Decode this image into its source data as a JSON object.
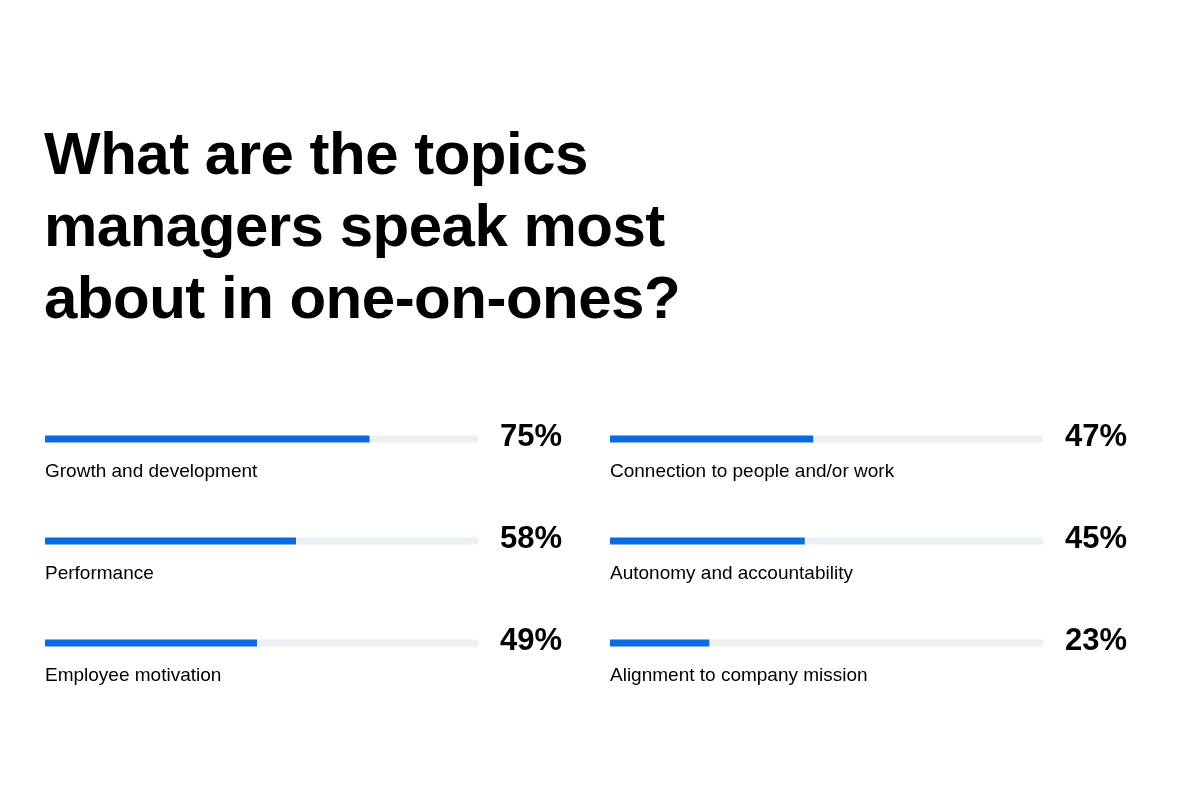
{
  "chart_data": [
    {
      "type": "bar",
      "title": "What are the topics managers speak most about in one-on-ones?",
      "orientation": "horizontal",
      "categories": [
        "Growth and development",
        "Performance",
        "Employee motivation"
      ],
      "values": [
        75,
        58,
        49
      ],
      "value_labels": [
        "75%",
        "58%",
        "49%"
      ],
      "color": "#0a6be0",
      "xlim": [
        0,
        100
      ]
    },
    {
      "type": "bar",
      "orientation": "horizontal",
      "categories": [
        "Connection to people and/or work",
        "Autonomy and accountability",
        "Alignment to company mission"
      ],
      "values": [
        47,
        45,
        23
      ],
      "value_labels": [
        "47%",
        "45%",
        "23%"
      ],
      "color": "#0a6be0",
      "xlim": [
        0,
        100
      ]
    }
  ]
}
